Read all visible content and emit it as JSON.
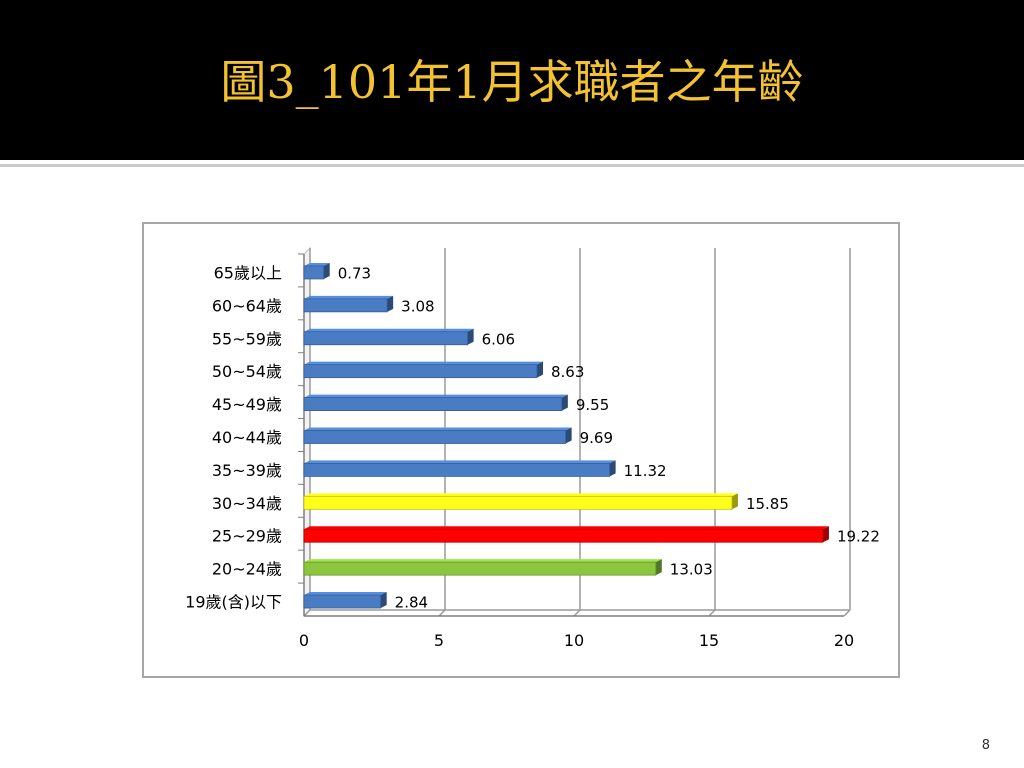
{
  "slide": {
    "title": "圖3_101年1月求職者之年齡",
    "page_number": "8"
  },
  "colors": {
    "header_bg": "#000000",
    "title": "#f2c230",
    "bar_default": "#4a7cc4",
    "bar_highlight_yellow": "#ffff1a",
    "bar_highlight_red": "#ff0000",
    "bar_highlight_green": "#8cc63f"
  },
  "chart_data": {
    "type": "bar",
    "orientation": "horizontal",
    "title": "",
    "xlabel": "",
    "ylabel": "",
    "xlim": [
      0,
      20
    ],
    "x_ticks": [
      "0",
      "5",
      "10",
      "15",
      "20"
    ],
    "grid": true,
    "legend": "none",
    "categories": [
      "65歲以上",
      "60~64歲",
      "55~59歲",
      "50~54歲",
      "45~49歲",
      "40~44歲",
      "35~39歲",
      "30~34歲",
      "25~29歲",
      "20~24歲",
      "19歲(含)以下"
    ],
    "values": [
      0.73,
      3.08,
      6.06,
      8.63,
      9.55,
      9.69,
      11.32,
      15.85,
      19.22,
      13.03,
      2.84
    ],
    "value_labels": [
      "0.73",
      "3.08",
      "6.06",
      "8.63",
      "9.55",
      "9.69",
      "11.32",
      "15.85",
      "19.22",
      "13.03",
      "2.84"
    ],
    "bar_colors": [
      "#4a7cc4",
      "#4a7cc4",
      "#4a7cc4",
      "#4a7cc4",
      "#4a7cc4",
      "#4a7cc4",
      "#4a7cc4",
      "#ffff1a",
      "#ff0000",
      "#8cc63f",
      "#4a7cc4"
    ]
  }
}
